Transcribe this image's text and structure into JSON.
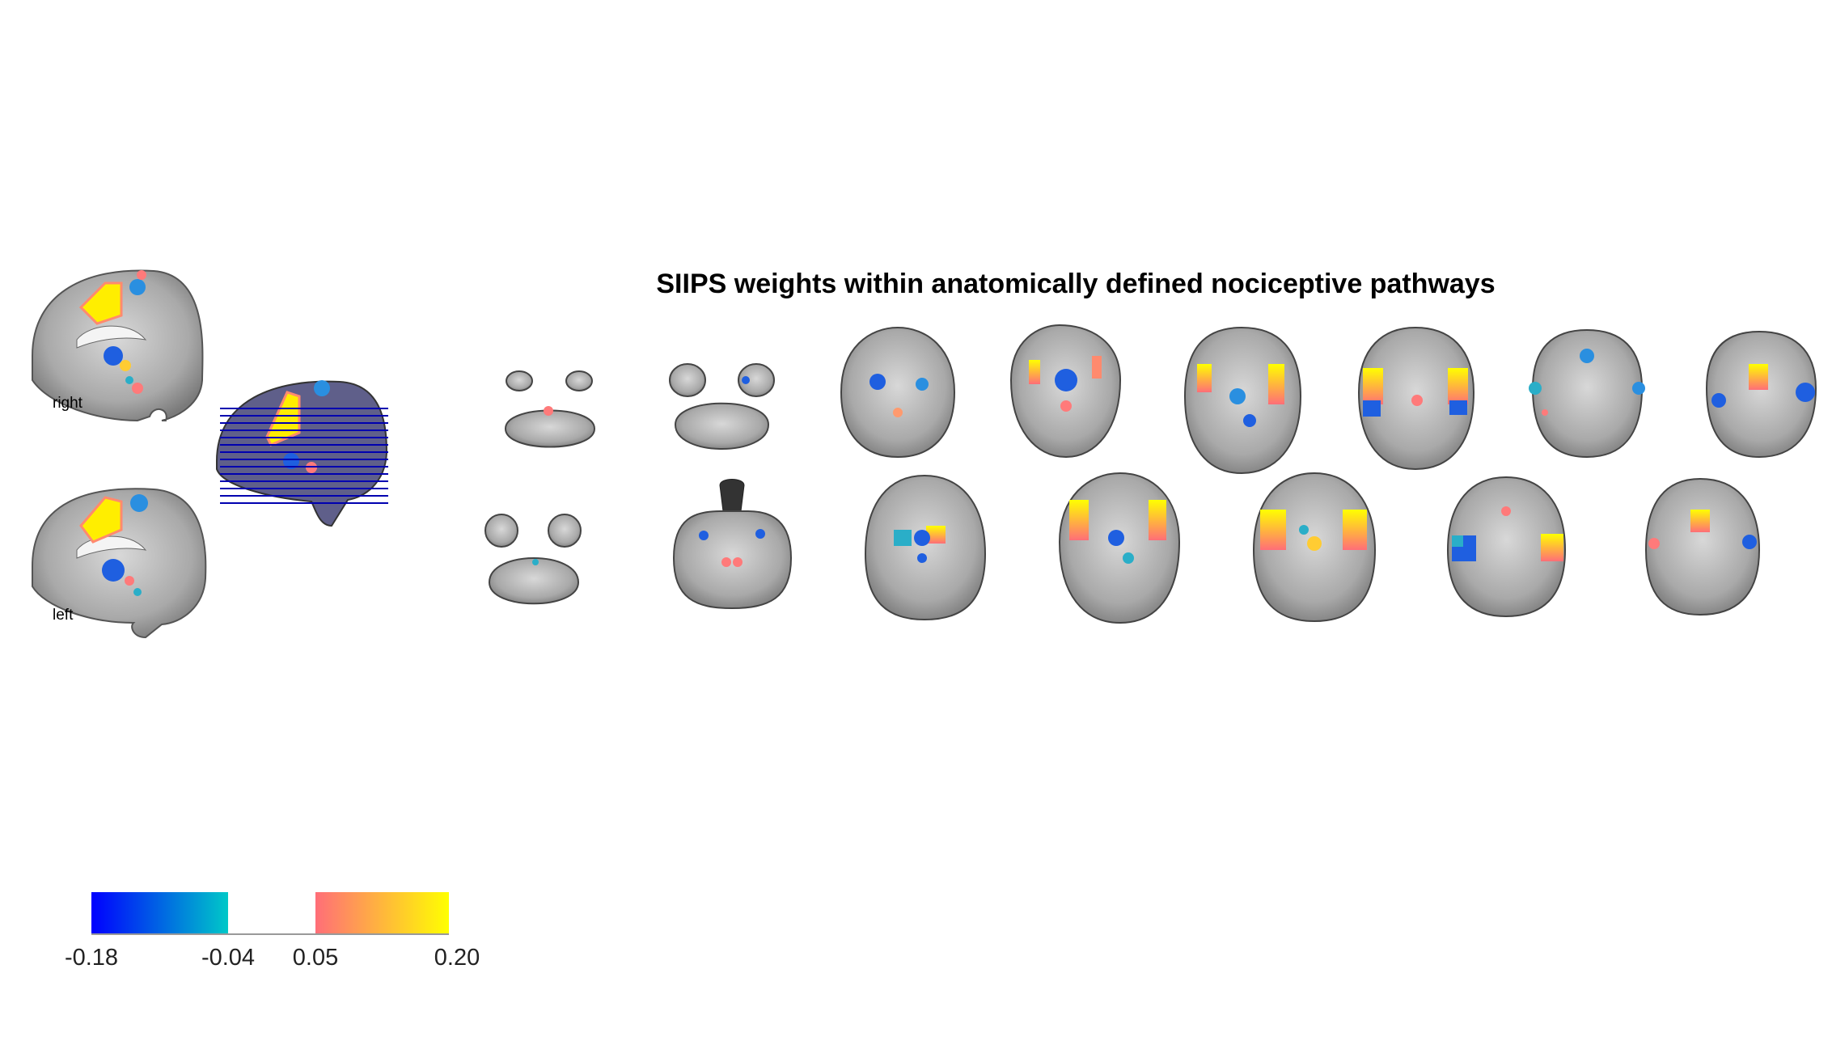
{
  "figure": {
    "title": "SIIPS weights within anatomically defined nociceptive pathways",
    "views": {
      "right_label": "right",
      "left_label": "left"
    },
    "colorbar": {
      "negative_range": [
        -0.18,
        -0.04
      ],
      "positive_range": [
        0.05,
        0.2
      ],
      "tick_labels": [
        "-0.18",
        "-0.04",
        "0.05",
        "0.20"
      ],
      "colors": {
        "neg_start": "#0000ff",
        "neg_end": "#00c8c8",
        "pos_start": "#ff6e78",
        "pos_end": "#ffff00"
      }
    },
    "axial_rows": {
      "top_row_count": 8,
      "bottom_row_count": 7
    }
  }
}
